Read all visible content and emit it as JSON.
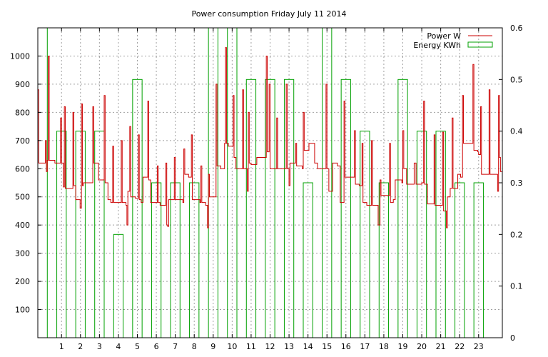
{
  "chart_data": {
    "type": "line",
    "title": "Power consumption Friday July 11 2014",
    "xlabel": "",
    "ylabel": "",
    "y2label": "",
    "xlim": [
      -0.25,
      24.25
    ],
    "ylim": [
      0,
      1100
    ],
    "y2lim": [
      0,
      0.6
    ],
    "xticks": [
      1,
      2,
      3,
      4,
      5,
      6,
      7,
      8,
      9,
      10,
      11,
      12,
      13,
      14,
      15,
      16,
      17,
      18,
      19,
      20,
      21,
      22,
      23
    ],
    "yticks": [
      100,
      200,
      300,
      400,
      500,
      600,
      700,
      800,
      900,
      1000
    ],
    "y2ticks": [
      0,
      0.1,
      0.2,
      0.3,
      0.4,
      0.5,
      0.6
    ],
    "grid": true,
    "legend_position": "top-right",
    "colors": {
      "power": "#cc0000",
      "energy": "#00a000"
    },
    "series": [
      {
        "name": "Power W",
        "axis": "left",
        "style": "steps",
        "color": "#cc0000",
        "points": [
          [
            -0.25,
            880
          ],
          [
            -0.2,
            620
          ],
          [
            0.1,
            620
          ],
          [
            0.15,
            700
          ],
          [
            0.2,
            590
          ],
          [
            0.25,
            630
          ],
          [
            0.3,
            1000
          ],
          [
            0.35,
            630
          ],
          [
            0.6,
            630
          ],
          [
            0.65,
            620
          ],
          [
            0.9,
            620
          ],
          [
            0.95,
            780
          ],
          [
            1.0,
            620
          ],
          [
            1.1,
            535
          ],
          [
            1.15,
            820
          ],
          [
            1.2,
            530
          ],
          [
            1.5,
            530
          ],
          [
            1.6,
            800
          ],
          [
            1.65,
            540
          ],
          [
            1.75,
            490
          ],
          [
            1.95,
            490
          ],
          [
            1.98,
            460
          ],
          [
            2.05,
            830
          ],
          [
            2.1,
            540
          ],
          [
            2.15,
            550
          ],
          [
            2.5,
            550
          ],
          [
            2.65,
            820
          ],
          [
            2.7,
            620
          ],
          [
            2.9,
            620
          ],
          [
            2.95,
            560
          ],
          [
            3.2,
            560
          ],
          [
            3.25,
            860
          ],
          [
            3.3,
            550
          ],
          [
            3.45,
            490
          ],
          [
            3.6,
            480
          ],
          [
            3.7,
            680
          ],
          [
            3.75,
            480
          ],
          [
            4.0,
            480
          ],
          [
            4.15,
            700
          ],
          [
            4.2,
            480
          ],
          [
            4.4,
            470
          ],
          [
            4.45,
            400
          ],
          [
            4.5,
            520
          ],
          [
            4.6,
            750
          ],
          [
            4.65,
            500
          ],
          [
            4.9,
            495
          ],
          [
            5.05,
            720
          ],
          [
            5.1,
            490
          ],
          [
            5.2,
            480
          ],
          [
            5.3,
            570
          ],
          [
            5.5,
            570
          ],
          [
            5.55,
            840
          ],
          [
            5.6,
            560
          ],
          [
            5.7,
            480
          ],
          [
            6.0,
            480
          ],
          [
            6.05,
            610
          ],
          [
            6.1,
            480
          ],
          [
            6.2,
            470
          ],
          [
            6.4,
            470
          ],
          [
            6.5,
            620
          ],
          [
            6.55,
            400
          ],
          [
            6.6,
            395
          ],
          [
            6.65,
            490
          ],
          [
            6.9,
            490
          ],
          [
            6.95,
            640
          ],
          [
            7.0,
            490
          ],
          [
            7.4,
            480
          ],
          [
            7.45,
            670
          ],
          [
            7.5,
            580
          ],
          [
            7.7,
            570
          ],
          [
            7.85,
            720
          ],
          [
            7.9,
            490
          ],
          [
            8.3,
            480
          ],
          [
            8.35,
            610
          ],
          [
            8.4,
            480
          ],
          [
            8.6,
            470
          ],
          [
            8.7,
            390
          ],
          [
            8.75,
            580
          ],
          [
            8.8,
            500
          ],
          [
            9.0,
            500
          ],
          [
            9.15,
            900
          ],
          [
            9.2,
            610
          ],
          [
            9.4,
            600
          ],
          [
            9.6,
            690
          ],
          [
            9.65,
            1030
          ],
          [
            9.7,
            690
          ],
          [
            9.8,
            680
          ],
          [
            9.9,
            680
          ],
          [
            10.05,
            860
          ],
          [
            10.1,
            640
          ],
          [
            10.2,
            600
          ],
          [
            10.45,
            600
          ],
          [
            10.55,
            880
          ],
          [
            10.6,
            600
          ],
          [
            10.75,
            600
          ],
          [
            10.8,
            520
          ],
          [
            10.85,
            800
          ],
          [
            10.9,
            620
          ],
          [
            11.0,
            615
          ],
          [
            11.25,
            615
          ],
          [
            11.3,
            640
          ],
          [
            11.6,
            640
          ],
          [
            11.8,
            1000
          ],
          [
            11.85,
            660
          ],
          [
            11.95,
            900
          ],
          [
            12.0,
            600
          ],
          [
            12.3,
            600
          ],
          [
            12.35,
            780
          ],
          [
            12.4,
            600
          ],
          [
            12.5,
            600
          ],
          [
            12.85,
            900
          ],
          [
            12.9,
            600
          ],
          [
            13.0,
            540
          ],
          [
            13.05,
            620
          ],
          [
            13.3,
            620
          ],
          [
            13.35,
            690
          ],
          [
            13.4,
            610
          ],
          [
            13.7,
            600
          ],
          [
            13.75,
            800
          ],
          [
            13.8,
            665
          ],
          [
            14.0,
            665
          ],
          [
            14.05,
            690
          ],
          [
            14.3,
            690
          ],
          [
            14.35,
            620
          ],
          [
            14.5,
            600
          ],
          [
            14.8,
            600
          ],
          [
            14.95,
            900
          ],
          [
            15.0,
            600
          ],
          [
            15.1,
            520
          ],
          [
            15.3,
            620
          ],
          [
            15.55,
            610
          ],
          [
            15.7,
            480
          ],
          [
            15.85,
            480
          ],
          [
            15.9,
            840
          ],
          [
            15.95,
            570
          ],
          [
            16.3,
            570
          ],
          [
            16.45,
            735
          ],
          [
            16.5,
            545
          ],
          [
            16.7,
            540
          ],
          [
            16.85,
            690
          ],
          [
            16.9,
            480
          ],
          [
            17.0,
            480
          ],
          [
            17.1,
            470
          ],
          [
            17.2,
            470
          ],
          [
            17.35,
            700
          ],
          [
            17.4,
            470
          ],
          [
            17.7,
            400
          ],
          [
            17.8,
            560
          ],
          [
            17.85,
            505
          ],
          [
            18.2,
            505
          ],
          [
            18.3,
            690
          ],
          [
            18.35,
            480
          ],
          [
            18.5,
            490
          ],
          [
            18.6,
            560
          ],
          [
            18.8,
            560
          ],
          [
            18.95,
            550
          ],
          [
            19.0,
            735
          ],
          [
            19.05,
            600
          ],
          [
            19.2,
            545
          ],
          [
            19.5,
            545
          ],
          [
            19.6,
            620
          ],
          [
            19.7,
            545
          ],
          [
            20.0,
            550
          ],
          [
            20.1,
            840
          ],
          [
            20.15,
            545
          ],
          [
            20.3,
            475
          ],
          [
            20.5,
            475
          ],
          [
            20.65,
            720
          ],
          [
            20.7,
            470
          ],
          [
            21.0,
            470
          ],
          [
            21.1,
            730
          ],
          [
            21.15,
            450
          ],
          [
            21.3,
            390
          ],
          [
            21.35,
            500
          ],
          [
            21.5,
            530
          ],
          [
            21.6,
            780
          ],
          [
            21.65,
            530
          ],
          [
            21.8,
            530
          ],
          [
            21.9,
            580
          ],
          [
            22.05,
            570
          ],
          [
            22.15,
            860
          ],
          [
            22.2,
            690
          ],
          [
            22.5,
            690
          ],
          [
            22.7,
            970
          ],
          [
            22.75,
            665
          ],
          [
            22.95,
            660
          ],
          [
            23.0,
            650
          ],
          [
            23.1,
            820
          ],
          [
            23.15,
            580
          ],
          [
            23.35,
            580
          ],
          [
            23.55,
            880
          ],
          [
            23.6,
            580
          ],
          [
            23.9,
            580
          ],
          [
            24.0,
            520
          ],
          [
            24.05,
            860
          ],
          [
            24.1,
            640
          ],
          [
            24.15,
            590
          ],
          [
            24.25,
            590
          ]
        ]
      },
      {
        "name": "Energy KWh",
        "axis": "right",
        "style": "boxes",
        "color": "#00a000",
        "box_width": 0.5,
        "x": [
          0,
          1,
          2,
          3,
          4,
          5,
          6,
          7,
          8,
          9,
          10,
          11,
          12,
          13,
          14,
          15,
          16,
          17,
          18,
          19,
          20,
          21,
          22,
          23
        ],
        "values": [
          0.6,
          0.4,
          0.4,
          0.4,
          0.2,
          0.5,
          0.3,
          0.3,
          0.3,
          0.6,
          0.6,
          0.5,
          0.5,
          0.5,
          0.3,
          0.6,
          0.5,
          0.4,
          0.3,
          0.5,
          0.4,
          0.4,
          0.3,
          0.3
        ]
      }
    ]
  }
}
